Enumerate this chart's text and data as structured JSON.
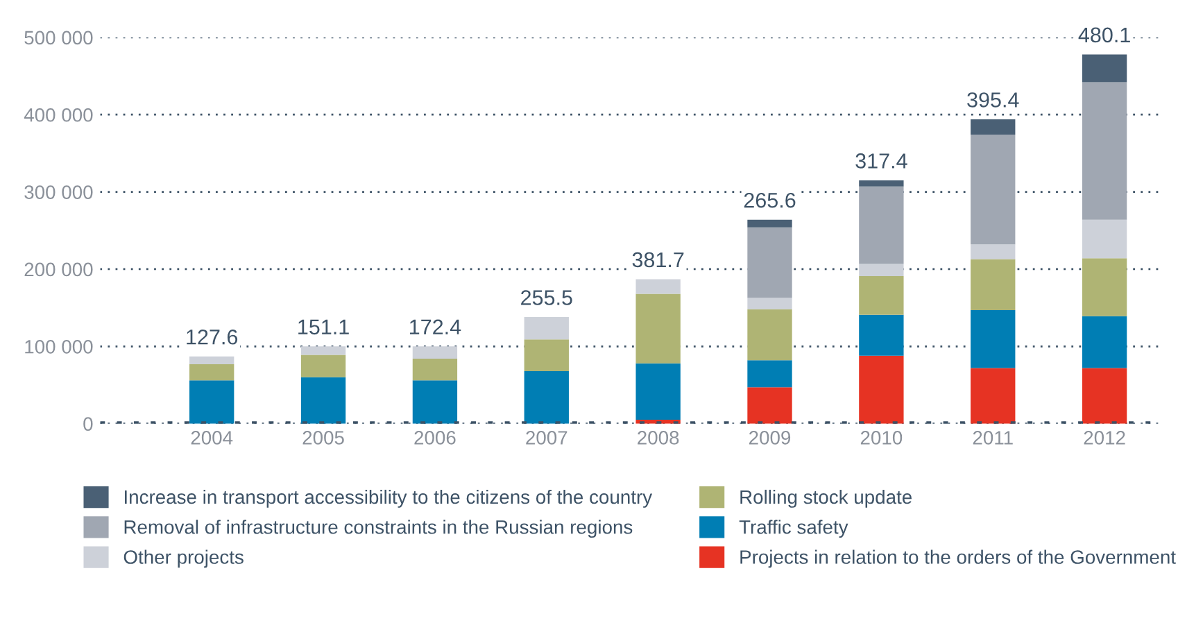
{
  "chart_data": {
    "type": "bar",
    "stacked": true,
    "categories": [
      "2004",
      "2005",
      "2006",
      "2007",
      "2008",
      "2009",
      "2010",
      "2011",
      "2012"
    ],
    "series": [
      {
        "name": "Projects in relation to the orders of the Government",
        "color": "#e63323",
        "values": [
          0,
          0,
          0,
          0,
          5000,
          47000,
          88000,
          72000,
          72000
        ]
      },
      {
        "name": "Traffic safety",
        "color": "#007eb4",
        "values": [
          56000,
          60000,
          56000,
          68000,
          73000,
          35000,
          53000,
          75000,
          67000
        ]
      },
      {
        "name": "Rolling stock update",
        "color": "#afb474",
        "values": [
          21000,
          29000,
          28000,
          41000,
          90000,
          66000,
          50000,
          66000,
          75000
        ]
      },
      {
        "name": "Other projects",
        "color": "#cdd1d9",
        "values": [
          10000,
          11000,
          16000,
          29000,
          19000,
          15000,
          16000,
          19000,
          50000
        ]
      },
      {
        "name": "Removal of infrastructure constraints in the Russian regions",
        "color": "#a0a7b2",
        "values": [
          0,
          0,
          0,
          0,
          0,
          91000,
          100000,
          142000,
          178000
        ]
      },
      {
        "name": "Increase in transport accessibility to the citizens of the country",
        "color": "#4a6075",
        "values": [
          0,
          0,
          0,
          0,
          0,
          10000,
          8000,
          20000,
          36000
        ]
      }
    ],
    "annotations": [
      {
        "text": "127.6",
        "x": "2004",
        "y": 87000
      },
      {
        "text": "151.1",
        "x": "2005",
        "y": 100000
      },
      {
        "text": "172.4",
        "x": "2006",
        "y": 100000
      },
      {
        "text": "255.5",
        "x": "2007",
        "y": 138000
      },
      {
        "text": "381.7",
        "x": "2008",
        "y": 187000
      },
      {
        "text": "265.6",
        "x": "2009",
        "y": 264000
      },
      {
        "text": "317.4",
        "x": "2010",
        "y": 315000
      },
      {
        "text": "395.4",
        "x": "2011",
        "y": 394000
      },
      {
        "text": "480.1",
        "x": "2012",
        "y": 478000
      }
    ],
    "ylim": [
      0,
      500000
    ],
    "yticks": [
      0,
      {
        "value": 100000,
        "label": "100 000"
      },
      {
        "value": 200000,
        "label": "200 000"
      },
      {
        "value": 300000,
        "label": "300 000"
      },
      {
        "value": 400000,
        "label": "400 000"
      },
      {
        "value": 500000,
        "label": "500 000"
      }
    ],
    "grid": "y",
    "legend": "bottom"
  }
}
